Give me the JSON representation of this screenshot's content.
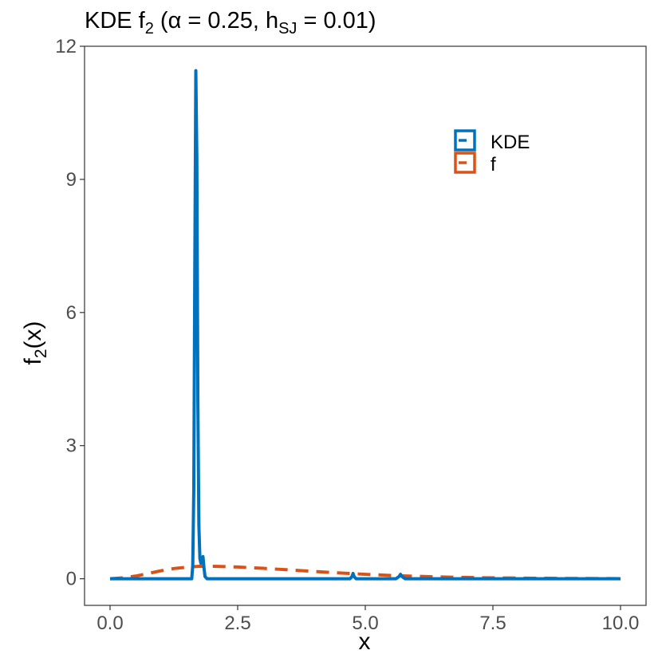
{
  "chart_data": {
    "type": "line",
    "title": {
      "pre": "KDE f",
      "pre_sub": "2",
      "mid": " (α = 0.25, h",
      "mid_sub": "SJ",
      "post": " = 0.01)"
    },
    "xlabel": "x",
    "ylabel": {
      "base": "f",
      "sub": "2",
      "post": "(x)"
    },
    "xlim": [
      -0.5,
      10.5
    ],
    "ylim": [
      -0.6,
      12.0
    ],
    "x_ticks": [
      0.0,
      2.5,
      5.0,
      7.5,
      10.0
    ],
    "x_tick_labels": [
      "0.0",
      "2.5",
      "5.0",
      "7.5",
      "10.0"
    ],
    "y_ticks": [
      0,
      3,
      6,
      9,
      12
    ],
    "y_tick_labels": [
      "0",
      "3",
      "6",
      "9",
      "12"
    ],
    "grid": false,
    "legend_position": "top-right",
    "series": [
      {
        "name": "KDE",
        "color": "#0072BD",
        "style": "solid",
        "x": [
          0.0,
          1.5,
          1.6,
          1.62,
          1.64,
          1.66,
          1.68,
          1.7,
          1.72,
          1.74,
          1.76,
          1.78,
          1.8,
          1.82,
          1.84,
          1.86,
          1.9,
          2.5,
          4.7,
          4.74,
          4.76,
          4.78,
          4.82,
          5.6,
          5.66,
          5.69,
          5.72,
          5.78,
          7.5,
          10.0
        ],
        "y": [
          0.0,
          0.0,
          0.0,
          0.3,
          2.0,
          7.0,
          11.45,
          9.5,
          4.0,
          1.2,
          0.45,
          0.35,
          0.45,
          0.5,
          0.25,
          0.05,
          0.0,
          0.0,
          0.0,
          0.05,
          0.12,
          0.05,
          0.0,
          0.0,
          0.05,
          0.1,
          0.05,
          0.0,
          0.0,
          0.0
        ]
      },
      {
        "name": "f",
        "color": "#D95319",
        "style": "dashed",
        "x": [
          0.0,
          0.25,
          0.5,
          0.75,
          1.0,
          1.25,
          1.5,
          1.75,
          2.0,
          2.25,
          2.5,
          3.0,
          3.5,
          4.0,
          4.5,
          5.0,
          5.5,
          6.0,
          6.5,
          7.0,
          7.5,
          8.0,
          8.5,
          9.0,
          9.5,
          10.0
        ],
        "y": [
          0.0,
          0.02,
          0.06,
          0.12,
          0.18,
          0.23,
          0.26,
          0.28,
          0.28,
          0.275,
          0.265,
          0.235,
          0.2,
          0.165,
          0.13,
          0.1,
          0.075,
          0.055,
          0.04,
          0.028,
          0.02,
          0.014,
          0.01,
          0.007,
          0.005,
          0.003
        ]
      }
    ]
  }
}
